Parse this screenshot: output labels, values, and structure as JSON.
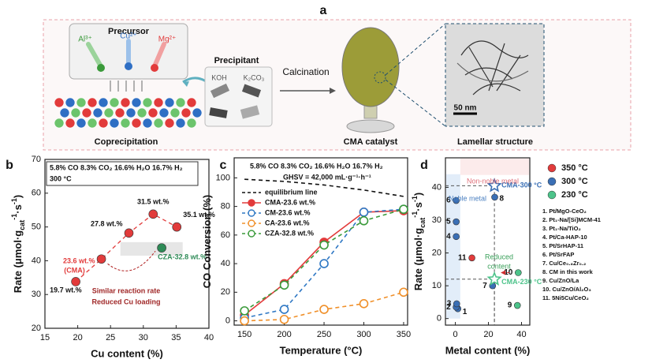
{
  "panel_labels": [
    "a",
    "b",
    "c",
    "d"
  ],
  "schematic": {
    "precursor": "Precursor",
    "ions": [
      "Al³⁺",
      "Cu²⁺",
      "Mg²⁺"
    ],
    "precipitant": "Precipitant",
    "reagents": [
      "KOH",
      "K₂CO₃"
    ],
    "calcination": "Calcination",
    "coprecipitation": "Coprecipitation",
    "product": "CMA catalyst",
    "structure": "Lamellar structure",
    "scale_bar": "50 nm"
  },
  "chart_data": [
    {
      "type": "scatter",
      "xlabel": "Cu content (%)",
      "ylabel": [
        {
          "text": "Rate (μmol·g"
        },
        {
          "text": "cat",
          "shift": "sub"
        },
        {
          "text": "-1",
          "shift": "super"
        },
        {
          "text": "·s"
        },
        {
          "text": "-1",
          "shift": "super"
        },
        {
          "text": ")"
        }
      ],
      "xlim": [
        15,
        40
      ],
      "xticks": [
        15,
        20,
        25,
        30,
        35,
        40
      ],
      "ylim": [
        20,
        70
      ],
      "yticks": [
        20,
        30,
        40,
        50,
        60,
        70
      ],
      "conditions": [
        "5.8% CO 8.3% CO₂ 16.6% H₂O 16.7% H₂",
        "300 °C"
      ],
      "series": [
        {
          "color": "#e23b3b",
          "x": [
            19.7,
            23.6,
            27.8,
            31.5,
            35.1
          ],
          "values": [
            33.8,
            40.5,
            48.2,
            53.8,
            50.0
          ],
          "point_labels": [
            "19.7 wt.%",
            "23.6 wt.%",
            "27.8 wt.%",
            "31.5 wt.%",
            "35.1 wt.%"
          ]
        },
        {
          "name": "CZA-32.8 wt.%",
          "color": "#2e8b57",
          "x": [
            32.8
          ],
          "values": [
            43.8
          ]
        }
      ],
      "annotations": [
        "(CMA)",
        "Similar reaction rate",
        "Reduced Cu loading"
      ]
    },
    {
      "type": "line",
      "xlabel": "Temperature (°C)",
      "ylabel": [
        {
          "text": "CO Conversion (%)"
        }
      ],
      "x": [
        150,
        200,
        250,
        300,
        350
      ],
      "xlim": [
        137,
        355
      ],
      "xticks": [
        150,
        200,
        250,
        300,
        350
      ],
      "ylim": [
        -3,
        114
      ],
      "yticks": [
        0,
        20,
        40,
        60,
        80,
        100
      ],
      "conditions": [
        "5.8% CO 8.3% CO₂ 16.6% H₂O 16.7% H₂",
        "GHSV = 42,000 mL·g⁻¹·h⁻¹"
      ],
      "series": [
        {
          "name": "equilibrium line",
          "color": "#111111",
          "dash": true,
          "marker": "none",
          "values": [
            99,
            97.5,
            95,
            91.5,
            87
          ]
        },
        {
          "name": "CMA-23.6 wt.%",
          "color": "#e23b3b",
          "dash": false,
          "marker": "filled",
          "values": [
            4,
            26,
            55,
            76,
            77
          ]
        },
        {
          "name": "CM-23.6 wt.%",
          "color": "#2f78c4",
          "dash": true,
          "marker": "open",
          "values": [
            2,
            8,
            40,
            76,
            78
          ]
        },
        {
          "name": "CA-23.6 wt.%",
          "color": "#f0902a",
          "dash": true,
          "marker": "open",
          "values": [
            0,
            1,
            8,
            12,
            20
          ]
        },
        {
          "name": "CZA-32.8 wt.%",
          "color": "#3a9a3a",
          "dash": true,
          "marker": "open",
          "values": [
            7,
            25,
            53,
            70,
            78
          ]
        }
      ]
    },
    {
      "type": "scatter",
      "xlabel": "Metal content (%)",
      "ylabel": [
        {
          "text": "Rate (μmol·g"
        },
        {
          "text": "cat",
          "shift": "sub"
        },
        {
          "text": "-1",
          "shift": "super"
        },
        {
          "text": "·s"
        },
        {
          "text": "-1",
          "shift": "super"
        },
        {
          "text": ")"
        }
      ],
      "xlim": [
        -6,
        45
      ],
      "xticks": [
        0,
        20,
        40
      ],
      "ylim": [
        -2,
        49
      ],
      "yticks": [
        0,
        10,
        20,
        30,
        40
      ],
      "legend": "right",
      "series": [
        {
          "name": "350 °C",
          "color": "#e23b3b",
          "x": [
            10
          ],
          "values": [
            18.5
          ],
          "point_labels": [
            "11"
          ]
        },
        {
          "name": "300 °C",
          "color": "#3a6fb5",
          "x": [
            1.5,
            0.5,
            0.8,
            0.5,
            0.5,
            0.5,
            22.5,
            23.8
          ],
          "values": [
            3,
            3.5,
            4.5,
            25,
            29.5,
            36,
            10,
            37
          ],
          "point_labels": [
            "1",
            "2",
            "3",
            "4",
            "5",
            "6",
            "7",
            "8"
          ]
        },
        {
          "name": "230 °C",
          "color": "#4cc38a",
          "x": [
            37.5,
            38
          ],
          "values": [
            4,
            14
          ],
          "point_labels": [
            "9",
            "10"
          ]
        }
      ],
      "highlights": [
        {
          "label": "CMA-300 °C",
          "color": "#3a6fb5",
          "x": 23.6,
          "y": 40.5
        },
        {
          "label": "CMA-230 °C",
          "color": "#4cc38a",
          "x": 23.6,
          "y": 12
        }
      ],
      "annotations": [
        "Non-noble metal",
        "Noble metal"
      ],
      "reduced_content": [
        "Reduced",
        "content"
      ],
      "catalysts": [
        "1. Pt/MgO-CeO₂",
        "2. Pt₁-Na/[Si]MCM-41",
        "3. Pt₁-Na/TiO₂",
        "4. Pt/Ca-HAP-10",
        "5. Pt/SrHAP-11",
        "6. Pt/SrFAP",
        "7. Cu/Ce₀.₈Zr₀.₂",
        "8. CM in this work",
        "9. Cu/ZnO/La",
        "10. Cu/ZnO/Al₂O₃",
        "11. 5Ni5Cu/CeO₂"
      ]
    }
  ]
}
